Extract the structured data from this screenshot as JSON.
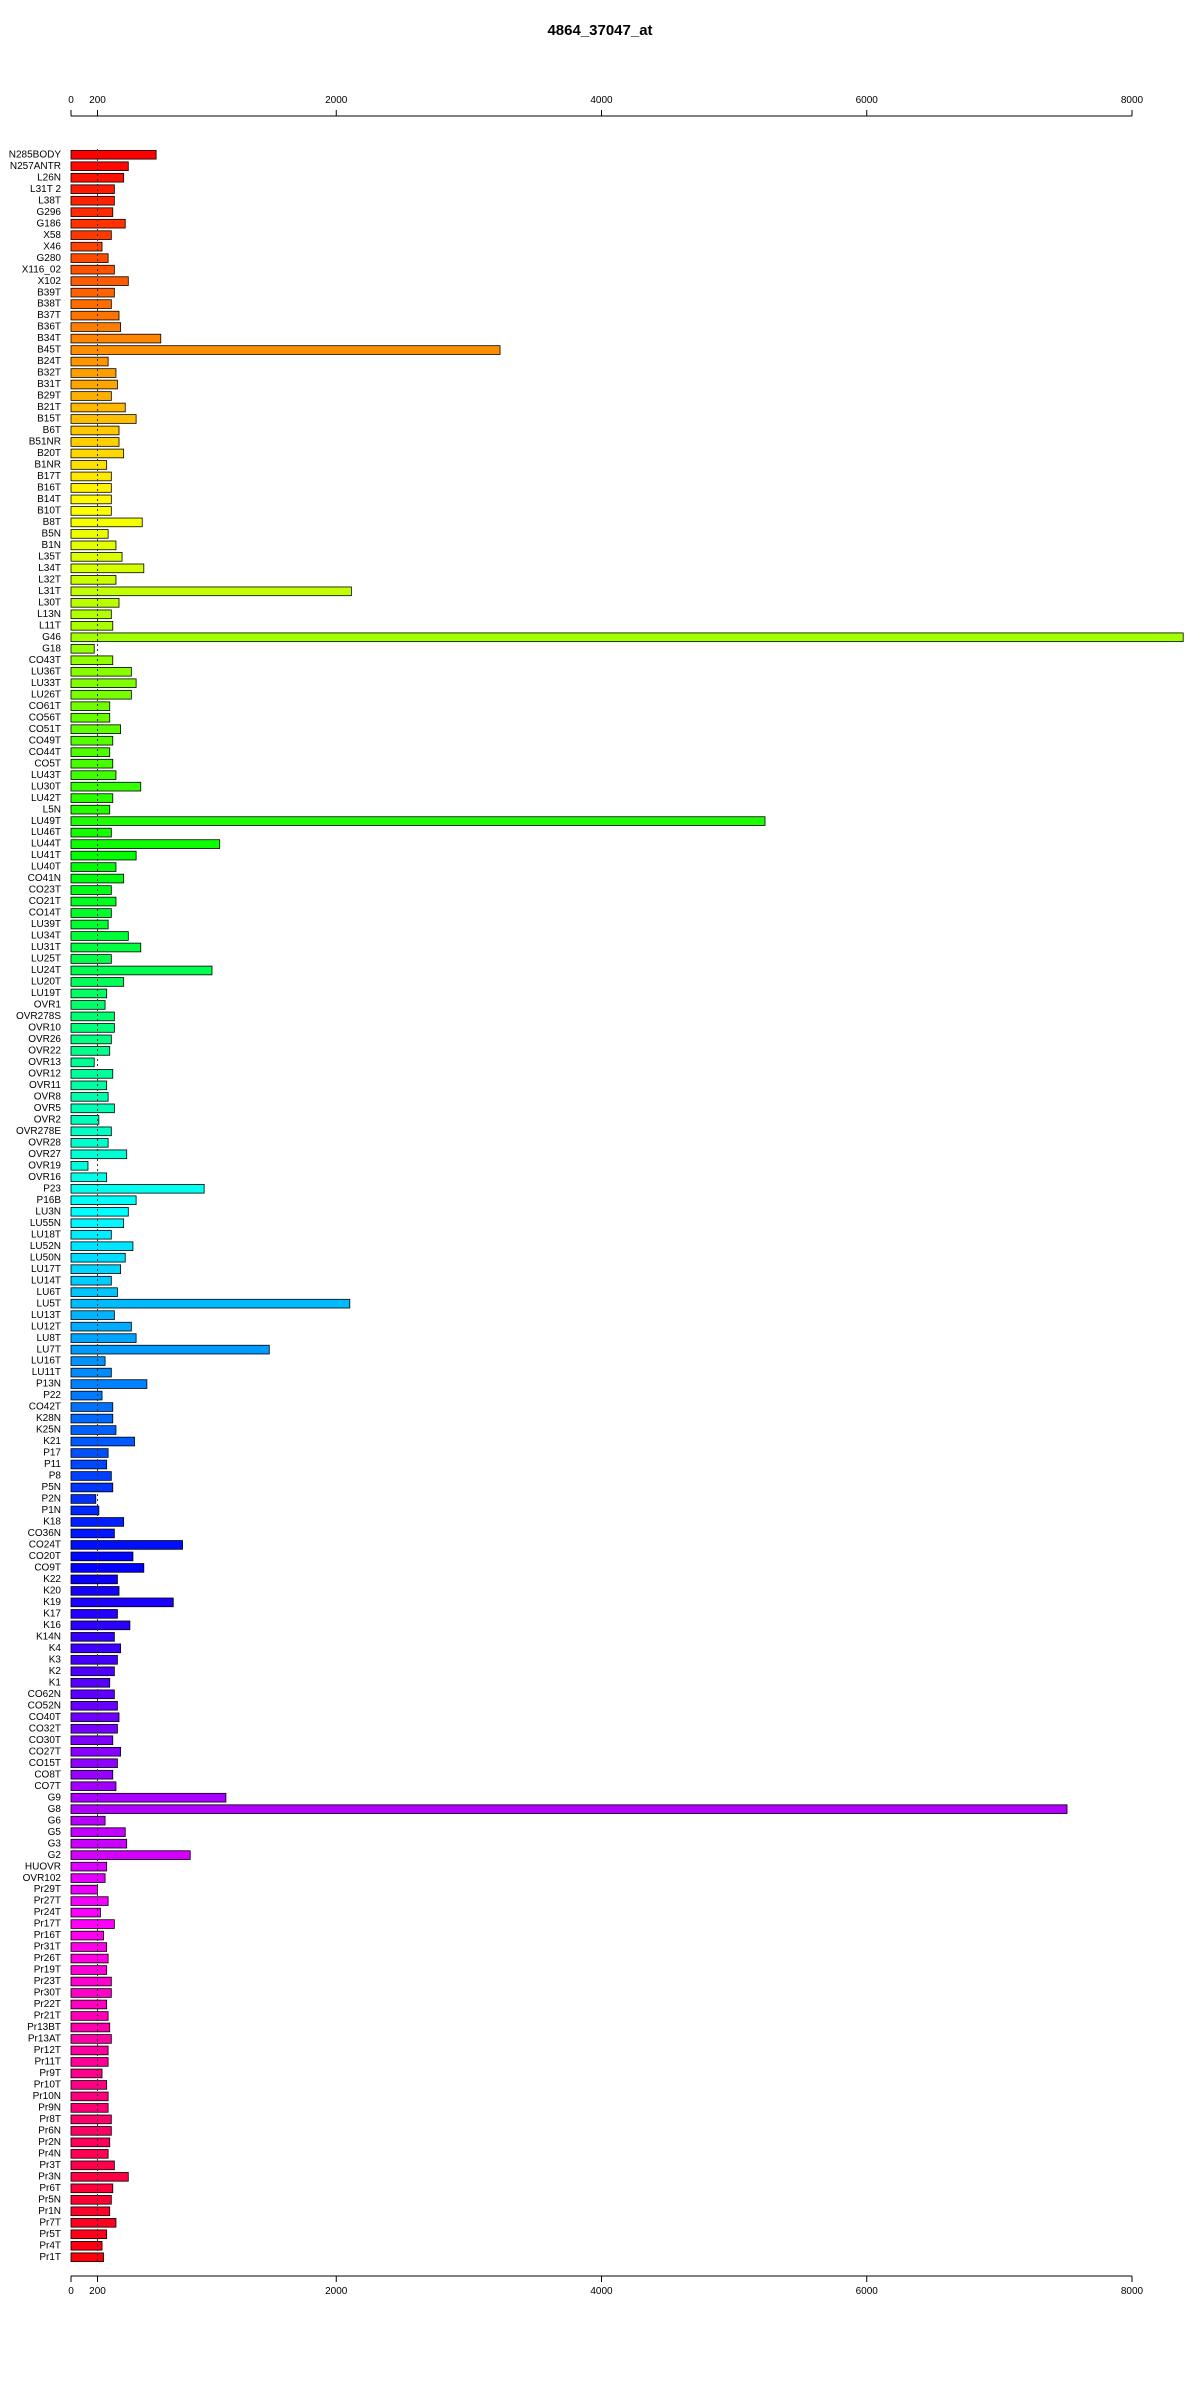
{
  "chart_data": {
    "type": "barh",
    "title": "4864_37047_at",
    "categories": [
      "N285BODY",
      "N257ANTR",
      "L26N",
      "L31T 2",
      "L38T",
      "G296",
      "G186",
      "X58",
      "X46",
      "G280",
      "X116_02",
      "X102",
      "B39T",
      "B38T",
      "B37T",
      "B36T",
      "B34T",
      "B45T",
      "B24T",
      "B32T",
      "B31T",
      "B29T",
      "B21T",
      "B15T",
      "B6T",
      "B51NR",
      "B20T",
      "B1NR",
      "B17T",
      "B16T",
      "B14T",
      "B10T",
      "B8T",
      "B5N",
      "B1N",
      "L35T",
      "L34T",
      "L32T",
      "L31T",
      "L30T",
      "L13N",
      "L11T",
      "G46",
      "G18",
      "CO43T",
      "LU36T",
      "LU33T",
      "LU26T",
      "CO61T",
      "CO56T",
      "CO51T",
      "CO49T",
      "CO44T",
      "CO5T",
      "LU43T",
      "LU30T",
      "LU42T",
      "L5N",
      "LU49T",
      "LU46T",
      "LU44T",
      "LU41T",
      "LU40T",
      "CO41N",
      "CO23T",
      "CO21T",
      "CO14T",
      "LU39T",
      "LU34T",
      "LU31T",
      "LU25T",
      "LU24T",
      "LU20T",
      "LU19T",
      "OVR1",
      "OVR278S",
      "OVR10",
      "OVR26",
      "OVR22",
      "OVR13",
      "OVR12",
      "OVR11",
      "OVR8",
      "OVR5",
      "OVR2",
      "OVR278E",
      "OVR28",
      "OVR27",
      "OVR19",
      "OVR16",
      "P23",
      "P16B",
      "LU3N",
      "LU55N",
      "LU18T",
      "LU52N",
      "LU50N",
      "LU17T",
      "LU14T",
      "LU6T",
      "LU5T",
      "LU13T",
      "LU12T",
      "LU8T",
      "LU7T",
      "LU16T",
      "LU11T",
      "P13N",
      "P22",
      "CO42T",
      "K28N",
      "K25N",
      "K21",
      "P17",
      "P11",
      "P8",
      "P5N",
      "P2N",
      "P1N",
      "K18",
      "CO36N",
      "CO24T",
      "CO20T",
      "CO9T",
      "K22",
      "K20",
      "K19",
      "K17",
      "K16",
      "K14N",
      "K4",
      "K3",
      "K2",
      "K1",
      "CO62N",
      "CO52N",
      "CO40T",
      "CO32T",
      "CO30T",
      "CO27T",
      "CO15T",
      "CO8T",
      "CO7T",
      "G9",
      "G8",
      "G6",
      "G5",
      "G3",
      "G2",
      "HUOVR",
      "OVR102",
      "Pr29T",
      "Pr27T",
      "Pr24T",
      "Pr17T",
      "Pr16T",
      "Pr31T",
      "Pr26T",
      "Pr19T",
      "Pr23T",
      "Pr30T",
      "Pr22T",
      "Pr21T",
      "Pr13BT",
      "Pr13AT",
      "Pr12T",
      "Pr11T",
      "Pr9T",
      "Pr10T",
      "Pr10N",
      "Pr9N",
      "Pr8T",
      "Pr6N",
      "Pr2N",
      "Pr4N",
      "Pr3T",
      "Pr3N",
      "Pr6T",
      "Pr5N",
      "Pr1N",
      "Pr7T",
      "Pr5T",
      "Pr4T",
      "Pr1T"
    ],
    "values": [
      642,
      432,
      397,
      327,
      327,
      315,
      409,
      304,
      234,
      280,
      327,
      432,
      327,
      304,
      362,
      374,
      677,
      3235,
      280,
      339,
      350,
      304,
      409,
      491,
      362,
      362,
      397,
      269,
      304,
      304,
      304,
      304,
      537,
      280,
      339,
      385,
      549,
      339,
      2114,
      362,
      304,
      315,
      8386,
      175,
      315,
      455,
      491,
      455,
      292,
      292,
      374,
      315,
      292,
      315,
      339,
      526,
      315,
      292,
      5233,
      304,
      1121,
      491,
      339,
      397,
      304,
      339,
      304,
      280,
      432,
      526,
      304,
      1063,
      397,
      269,
      257,
      327,
      327,
      304,
      292,
      175,
      315,
      269,
      280,
      327,
      210,
      304,
      280,
      420,
      128,
      269,
      1004,
      491,
      432,
      397,
      304,
      467,
      409,
      374,
      304,
      350,
      2102,
      327,
      455,
      491,
      1495,
      257,
      304,
      572,
      234,
      315,
      315,
      339,
      479,
      280,
      269,
      304,
      315,
      187,
      210,
      397,
      327,
      841,
      467,
      549,
      350,
      362,
      771,
      350,
      444,
      327,
      374,
      350,
      327,
      292,
      327,
      350,
      362,
      350,
      315,
      374,
      350,
      315,
      339,
      1168,
      7510,
      257,
      409,
      420,
      899,
      269,
      257,
      199,
      280,
      222,
      327,
      245,
      269,
      280,
      269,
      304,
      304,
      269,
      280,
      292,
      304,
      280,
      280,
      234,
      269,
      280,
      280,
      304,
      304,
      292,
      280,
      327,
      432,
      315,
      304,
      292,
      339,
      269,
      234,
      245
    ],
    "palette": "rainbow",
    "reference_line": 200,
    "xlim": [
      0,
      8000
    ],
    "xticks": [
      0,
      200,
      2000,
      4000,
      6000,
      8000
    ]
  }
}
